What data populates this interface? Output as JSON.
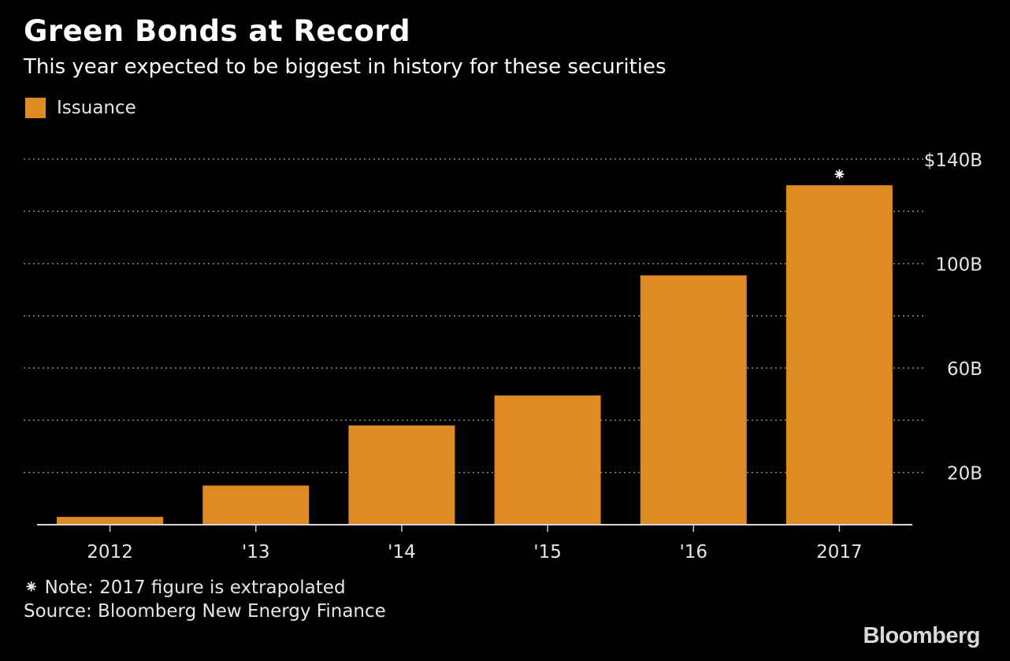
{
  "title": "Green Bonds at Record",
  "subtitle": "This year expected to be biggest in history for these securities",
  "legend": {
    "label": "Issuance"
  },
  "note": "⁕ Note: 2017 figure is extrapolated",
  "source": "Source: Bloomberg New Energy Finance",
  "logo": "Bloomberg",
  "colors": {
    "bar": "#DF8A22",
    "background": "#000000",
    "grid": "#8c8c8c",
    "text": "#e6e6e6"
  },
  "chart_data": {
    "type": "bar",
    "categories": [
      "2012",
      "'13",
      "'14",
      "'15",
      "'16",
      "2017"
    ],
    "series": [
      {
        "name": "Issuance",
        "values": [
          3,
          15,
          38,
          49.5,
          95.5,
          130
        ]
      }
    ],
    "ylim": [
      0,
      140
    ],
    "y_ticks": [
      {
        "value": 20,
        "label": "20B"
      },
      {
        "value": 60,
        "label": "60B"
      },
      {
        "value": 100,
        "label": "100B"
      },
      {
        "value": 140,
        "label": "$140B"
      }
    ],
    "gridlines": [
      20,
      40,
      60,
      80,
      100,
      120,
      140
    ],
    "axis_position": "right",
    "annotations": [
      {
        "category": "2017",
        "text": "⁕"
      }
    ],
    "grid": true,
    "legend_position": "top-left"
  }
}
